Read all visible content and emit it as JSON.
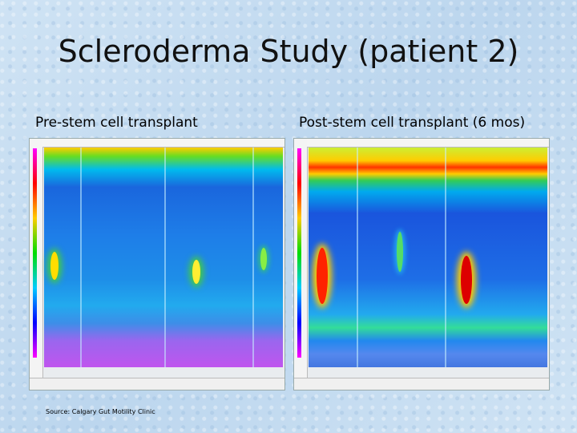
{
  "slide": {
    "title": "Scleroderma Study (patient 2)",
    "left_caption": "Pre-stem cell transplant",
    "right_caption": "Post-stem cell transplant (6 mos)",
    "source": "Source: Calgary Gut Motility Clinic"
  }
}
